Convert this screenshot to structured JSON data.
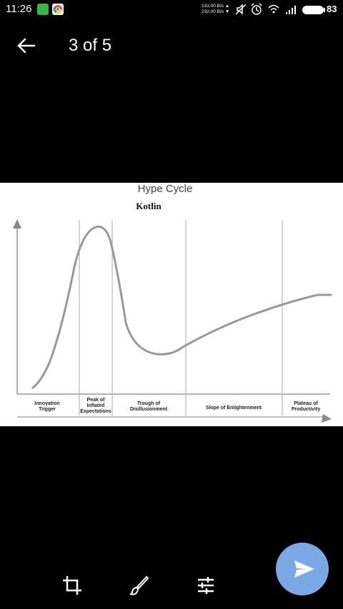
{
  "status_bar": {
    "time": "11:26",
    "net_up": "131,00 B/s ▲",
    "net_down": "232,00 B/s ▼",
    "battery": "83"
  },
  "toolbar": {
    "title": "3 of 5"
  },
  "image": {
    "heading": "Hype Cycle",
    "subtitle": "Kotlin",
    "phases": [
      "Innovation Trigger",
      "Peak of Inflated Expectations",
      "Trough of Disillusionment",
      "Slope of Enlightenment",
      "Plateau of Productivity"
    ]
  },
  "bottom_bar": {
    "icons": [
      "crop-icon",
      "brush-icon",
      "sliders-icon"
    ]
  },
  "fab": {
    "icon": "send-icon",
    "color": "#7aa9e6"
  }
}
